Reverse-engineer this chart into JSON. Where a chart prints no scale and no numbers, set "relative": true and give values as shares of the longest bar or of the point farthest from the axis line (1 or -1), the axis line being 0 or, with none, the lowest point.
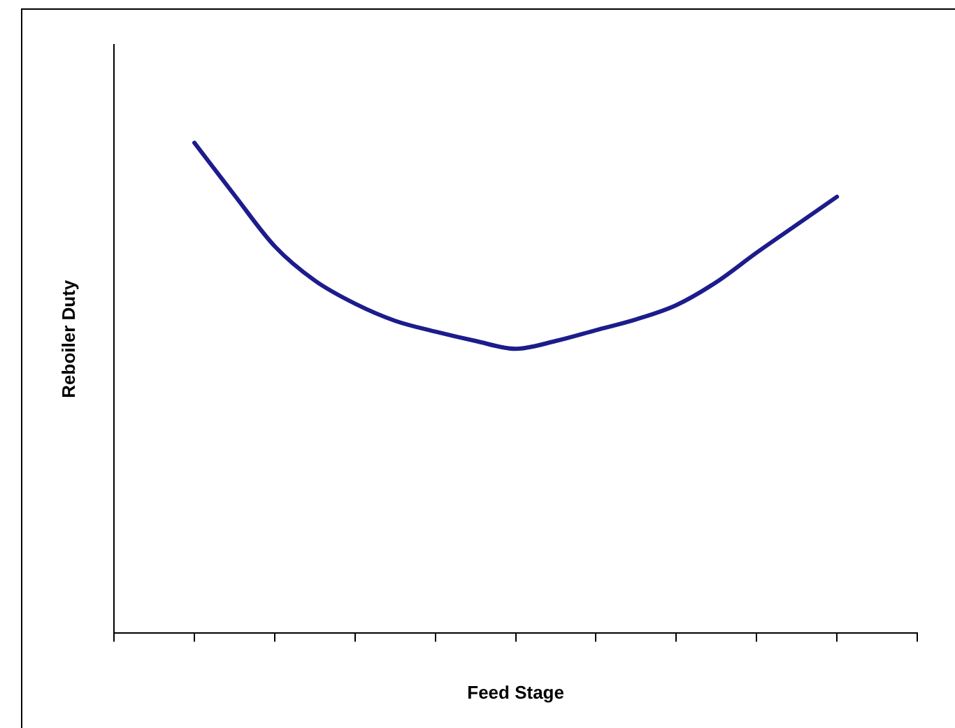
{
  "chart_data": {
    "type": "line",
    "xlabel": "Feed Stage",
    "ylabel": "Reboiler Duty",
    "relative": true,
    "categories": [
      null,
      null,
      null,
      null,
      null,
      null,
      null,
      null,
      null,
      null,
      null,
      null,
      null,
      null,
      null,
      null,
      null,
      null,
      null,
      null,
      null
    ],
    "series": [
      {
        "color": "#1c1c8c",
        "values": [
          null,
          null,
          1,
          0.893,
          0.789,
          0.719,
          0.672,
          0.637,
          0.615,
          0.596,
          0.58,
          0.596,
          0.618,
          0.64,
          0.669,
          0.716,
          0.776,
          0.833,
          0.89,
          null,
          null
        ]
      }
    ],
    "legend": false,
    "grid": false,
    "marker": "none",
    "line_style": "solid"
  }
}
